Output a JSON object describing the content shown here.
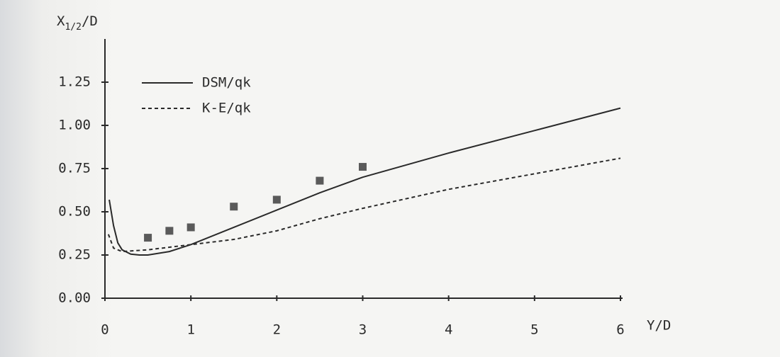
{
  "chart_data": {
    "type": "line",
    "x_label": "Y/D",
    "y_label": {
      "base": "X",
      "subscript": "1/2",
      "suffix": "/D"
    },
    "xlim": [
      0,
      6
    ],
    "xticks": [
      0,
      1,
      2,
      3,
      4,
      5,
      6
    ],
    "ylim": [
      0,
      1.5
    ],
    "yticks": [
      {
        "value": 0,
        "label": "0.00"
      },
      {
        "value": 0.25,
        "label": "0.25"
      },
      {
        "value": 0.5,
        "label": "0.50"
      },
      {
        "value": 0.75,
        "label": "0.75"
      },
      {
        "value": 1,
        "label": "1.00"
      },
      {
        "value": 1.25,
        "label": "1.25"
      }
    ],
    "legend": "upper left",
    "series": [
      {
        "name": "DSM/qk",
        "color": "#2a2a2a",
        "dashed": false,
        "x": [
          0.05,
          0.1,
          0.15,
          0.2,
          0.3,
          0.4,
          0.5,
          0.75,
          1,
          1.5,
          2,
          2.5,
          3,
          4,
          5,
          6
        ],
        "values": [
          0.57,
          0.42,
          0.32,
          0.28,
          0.255,
          0.25,
          0.25,
          0.27,
          0.31,
          0.41,
          0.51,
          0.61,
          0.7,
          0.84,
          0.97,
          1.1
        ]
      },
      {
        "name": "K-E/qk",
        "color": "#2a2a2a",
        "dashed": true,
        "x": [
          0.04,
          0.1,
          0.2,
          0.5,
          1,
          1.5,
          2,
          2.5,
          3,
          4,
          5,
          6
        ],
        "values": [
          0.37,
          0.29,
          0.27,
          0.28,
          0.31,
          0.34,
          0.39,
          0.46,
          0.52,
          0.63,
          0.72,
          0.81
        ]
      }
    ],
    "points": {
      "color": "#5a5a5a",
      "x": [
        0.5,
        0.75,
        1,
        1.5,
        2,
        2.5,
        3
      ],
      "values": [
        0.35,
        0.39,
        0.41,
        0.53,
        0.57,
        0.68,
        0.76
      ]
    }
  }
}
